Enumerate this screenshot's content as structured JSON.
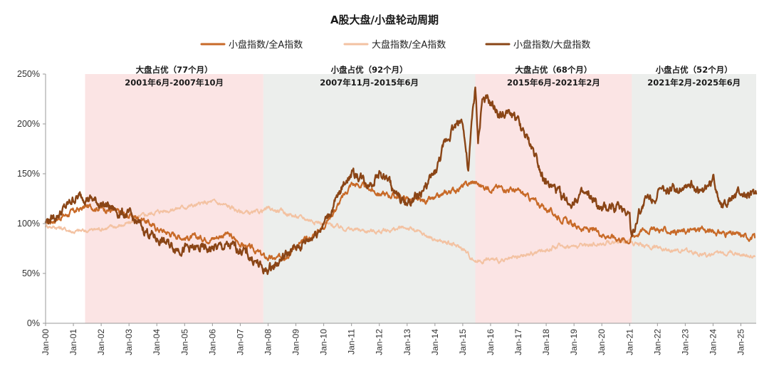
{
  "chart_data": {
    "type": "line",
    "title": "A股大盘/小盘轮动周期",
    "xlabel": "",
    "ylabel": "",
    "y_unit": "%",
    "ylim": [
      0,
      250
    ],
    "yticks": [
      0,
      50,
      100,
      150,
      200,
      250
    ],
    "ytick_labels": [
      "0%",
      "50%",
      "100%",
      "150%",
      "200%",
      "250%"
    ],
    "xlim": [
      2000.0,
      2025.55
    ],
    "xtick_labels": [
      "Jan-00",
      "Jan-01",
      "Jan-02",
      "Jan-03",
      "Jan-04",
      "Jan-05",
      "Jan-06",
      "Jan-07",
      "Jan-08",
      "Jan-09",
      "Jan-10",
      "Jan-11",
      "Jan-12",
      "Jan-13",
      "Jan-14",
      "Jan-15",
      "Jan-16",
      "Jan-17",
      "Jan-18",
      "Jan-19",
      "Jan-20",
      "Jan-21",
      "Jan-22",
      "Jan-23",
      "Jan-24",
      "Jan-25"
    ],
    "xtick_values": [
      2000,
      2001,
      2002,
      2003,
      2004,
      2005,
      2006,
      2007,
      2008,
      2009,
      2010,
      2011,
      2012,
      2013,
      2014,
      2015,
      2016,
      2017,
      2018,
      2019,
      2020,
      2021,
      2022,
      2023,
      2024,
      2025
    ],
    "legend_position": "top-center",
    "periods": [
      {
        "label": "大盘占优（77个月）",
        "range_label": "2001年6月-2007年10月",
        "start": 2001.42,
        "end": 2007.83,
        "color": "#fbe4e4"
      },
      {
        "label": "小盘占优（92个月）",
        "range_label": "2007年11月-2015年6月",
        "start": 2007.83,
        "end": 2015.45,
        "color": "#eceeec"
      },
      {
        "label": "大盘占优（68个月）",
        "range_label": "2015年6月-2021年2月",
        "start": 2015.45,
        "end": 2021.08,
        "color": "#fbe4e4"
      },
      {
        "label": "小盘占优（52个月）",
        "range_label": "2021年2月-2025年6月",
        "start": 2021.08,
        "end": 2025.55,
        "color": "#eceeec"
      }
    ],
    "series": [
      {
        "name": "小盘指数/全A指数",
        "color": "#c86a28",
        "x": [
          2000.0,
          2000.5,
          2001.0,
          2001.5,
          2002.0,
          2002.5,
          2003.0,
          2003.5,
          2004.0,
          2004.5,
          2005.0,
          2005.5,
          2006.0,
          2006.5,
          2007.0,
          2007.3,
          2007.6,
          2007.9,
          2008.3,
          2008.7,
          2009.0,
          2009.5,
          2010.0,
          2010.5,
          2011.0,
          2011.5,
          2012.0,
          2012.5,
          2013.0,
          2013.5,
          2014.0,
          2014.5,
          2015.0,
          2015.4,
          2015.7,
          2016.0,
          2016.5,
          2017.0,
          2017.5,
          2018.0,
          2018.5,
          2019.0,
          2019.5,
          2020.0,
          2020.5,
          2021.0,
          2021.1,
          2021.5,
          2022.0,
          2022.5,
          2023.0,
          2023.5,
          2024.0,
          2024.5,
          2025.0,
          2025.5
        ],
        "values": [
          100,
          106,
          112,
          117,
          116,
          112,
          108,
          105,
          95,
          90,
          86,
          86,
          85,
          90,
          80,
          76,
          72,
          66,
          64,
          70,
          78,
          85,
          98,
          118,
          140,
          137,
          130,
          128,
          125,
          122,
          124,
          132,
          137,
          142,
          137,
          136,
          136,
          132,
          124,
          115,
          106,
          98,
          94,
          90,
          86,
          83,
          87,
          94,
          94,
          92,
          92,
          94,
          92,
          90,
          88,
          86
        ]
      },
      {
        "name": "大盘指数/全A指数",
        "color": "#f3c2a2",
        "x": [
          2000.0,
          2000.5,
          2001.0,
          2001.5,
          2002.0,
          2002.5,
          2003.0,
          2003.5,
          2004.0,
          2004.5,
          2005.0,
          2005.5,
          2006.0,
          2006.5,
          2007.0,
          2007.5,
          2008.0,
          2008.5,
          2009.0,
          2009.5,
          2010.0,
          2010.5,
          2011.0,
          2011.5,
          2012.0,
          2012.5,
          2013.0,
          2013.5,
          2014.0,
          2014.5,
          2015.0,
          2015.3,
          2015.5,
          2016.0,
          2016.5,
          2017.0,
          2017.5,
          2018.0,
          2018.5,
          2019.0,
          2019.5,
          2020.0,
          2020.5,
          2021.0,
          2021.5,
          2022.0,
          2022.5,
          2023.0,
          2023.5,
          2024.0,
          2024.5,
          2025.0,
          2025.5
        ],
        "values": [
          98,
          96,
          92,
          93,
          95,
          97,
          100,
          108,
          112,
          114,
          117,
          119,
          122,
          118,
          112,
          110,
          115,
          112,
          107,
          104,
          100,
          97,
          94,
          93,
          92,
          94,
          96,
          90,
          84,
          80,
          75,
          66,
          62,
          64,
          62,
          66,
          70,
          74,
          78,
          77,
          79,
          80,
          82,
          82,
          78,
          76,
          74,
          72,
          70,
          68,
          72,
          70,
          67
        ]
      },
      {
        "name": "小盘指数/大盘指数",
        "color": "#8a4516",
        "x": [
          2000.0,
          2000.4,
          2000.8,
          2001.0,
          2001.4,
          2001.8,
          2002.2,
          2002.6,
          2003.0,
          2003.5,
          2004.0,
          2004.5,
          2005.0,
          2005.5,
          2006.0,
          2006.5,
          2007.0,
          2007.5,
          2007.9,
          2008.3,
          2008.7,
          2009.0,
          2009.5,
          2010.0,
          2010.5,
          2010.8,
          2011.0,
          2011.3,
          2011.6,
          2012.0,
          2012.3,
          2012.6,
          2013.0,
          2013.5,
          2014.0,
          2014.3,
          2014.6,
          2015.0,
          2015.2,
          2015.35,
          2015.45,
          2015.55,
          2015.7,
          2016.0,
          2016.4,
          2016.8,
          2017.2,
          2017.6,
          2018.0,
          2018.4,
          2018.8,
          2019.2,
          2019.6,
          2020.0,
          2020.4,
          2020.8,
          2021.0,
          2021.08,
          2021.3,
          2021.6,
          2022.0,
          2022.4,
          2022.8,
          2023.2,
          2023.6,
          2024.0,
          2024.3,
          2024.6,
          2025.0,
          2025.3,
          2025.55
        ],
        "values": [
          102,
          108,
          118,
          125,
          128,
          122,
          118,
          112,
          108,
          95,
          85,
          78,
          75,
          74,
          75,
          77,
          75,
          63,
          52,
          60,
          70,
          75,
          85,
          100,
          125,
          145,
          150,
          148,
          140,
          150,
          145,
          128,
          120,
          130,
          150,
          175,
          195,
          205,
          150,
          210,
          235,
          180,
          225,
          220,
          208,
          210,
          190,
          170,
          140,
          132,
          120,
          128,
          125,
          112,
          118,
          115,
          110,
          85,
          110,
          125,
          130,
          132,
          138,
          140,
          130,
          145,
          120,
          125,
          130,
          125,
          130
        ]
      }
    ]
  }
}
